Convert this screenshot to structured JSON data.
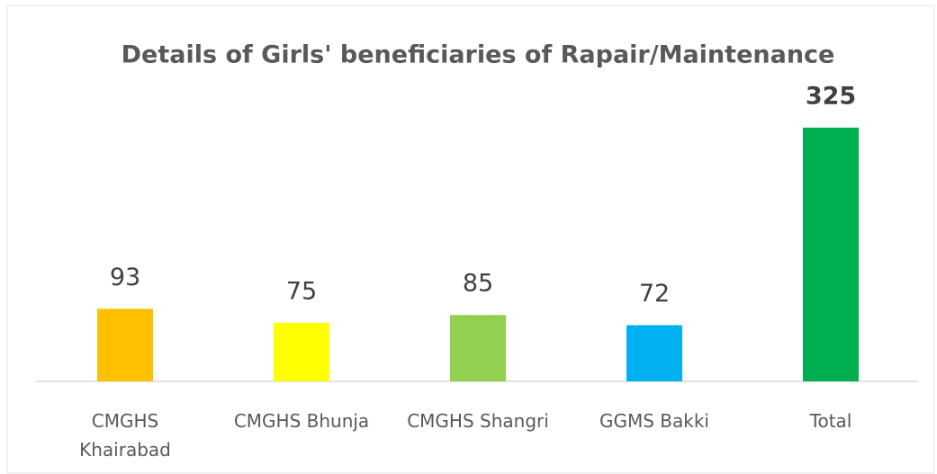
{
  "chart_data": {
    "type": "bar",
    "title": "Details of Girls' beneficiaries of Rapair/Maintenance",
    "categories": [
      "CMGHS Khairabad",
      "CMGHS Bhunja",
      "CMGHS Shangri",
      "GGMS Bakki",
      "Total"
    ],
    "values": [
      93,
      75,
      85,
      72,
      325
    ],
    "colors": [
      "#ffc000",
      "#ffff00",
      "#92d050",
      "#00b0f0",
      "#00b050"
    ]
  }
}
